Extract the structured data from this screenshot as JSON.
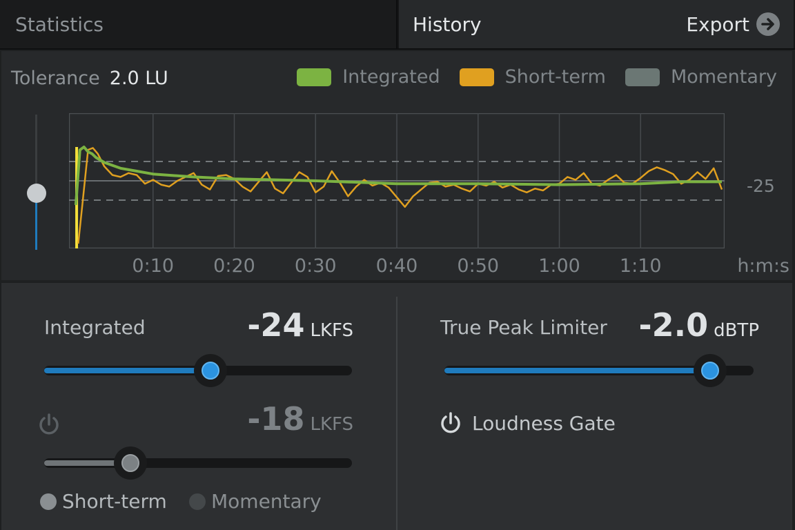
{
  "tabs": {
    "statistics": "Statistics",
    "history": "History",
    "export_label": "Export"
  },
  "history": {
    "tolerance_label": "Tolerance",
    "tolerance_value": "2.0 LU",
    "legend": [
      {
        "label": "Integrated",
        "color": "#7cb342"
      },
      {
        "label": "Short-term",
        "color": "#e0a020"
      },
      {
        "label": "Momentary",
        "color": "#6b7774"
      }
    ],
    "reference_label": "-25",
    "time_unit": "h:m:s"
  },
  "chart_data": {
    "type": "line",
    "xlabel": "h:m:s",
    "x_ticks": [
      "0:10",
      "0:20",
      "0:30",
      "0:40",
      "0:50",
      "1:00",
      "1:10"
    ],
    "xlim": [
      0,
      80
    ],
    "ylim": [
      -32,
      -18
    ],
    "reference_line": -25,
    "tolerance_lu": 2.0,
    "grid": true,
    "series": [
      {
        "name": "Integrated",
        "color": "#7cb342",
        "x": [
          0.5,
          1,
          1.5,
          2,
          2.5,
          3,
          4,
          5,
          6,
          8,
          10,
          15,
          20,
          30,
          40,
          50,
          60,
          70,
          75,
          80
        ],
        "y": [
          -27.5,
          -21.8,
          -21.5,
          -22,
          -22.2,
          -22.6,
          -23.1,
          -23.4,
          -23.7,
          -24.0,
          -24.3,
          -24.6,
          -24.8,
          -25.0,
          -25.3,
          -25.3,
          -25.4,
          -25.3,
          -25.1,
          -25.1
        ]
      },
      {
        "name": "Short-term",
        "color": "#e0a020",
        "x": [
          0.8,
          1.3,
          2,
          2.6,
          3.2,
          4,
          5,
          6,
          7,
          8,
          9,
          10,
          11,
          12,
          13,
          14,
          15,
          16,
          17,
          18,
          19,
          20,
          21,
          22,
          23,
          24,
          25,
          26,
          27,
          28,
          29,
          30,
          31,
          32,
          33,
          34,
          35,
          36,
          37,
          38,
          39,
          40,
          41,
          42,
          43,
          44,
          45,
          46,
          47,
          48,
          49,
          50,
          51,
          52,
          53,
          54,
          55,
          56,
          57,
          58,
          59,
          60,
          61,
          62,
          63,
          64,
          65,
          66,
          67,
          68,
          69,
          70,
          71,
          72,
          73,
          74,
          75,
          76,
          77,
          78,
          79,
          80
        ],
        "y": [
          -31.5,
          -27.5,
          -21.8,
          -21.6,
          -22.2,
          -23.5,
          -24.4,
          -24.6,
          -24.2,
          -24.4,
          -25.3,
          -24.9,
          -25.4,
          -25.6,
          -25.0,
          -24.6,
          -24.2,
          -25.4,
          -25.9,
          -24.5,
          -24.4,
          -24.8,
          -25.6,
          -26.1,
          -25.1,
          -24.1,
          -25.8,
          -26.3,
          -25.2,
          -24.1,
          -24.6,
          -26.2,
          -25.6,
          -24.0,
          -25.2,
          -26.6,
          -25.6,
          -24.9,
          -25.5,
          -25.2,
          -25.7,
          -26.7,
          -27.7,
          -26.6,
          -25.9,
          -25.2,
          -25.1,
          -25.6,
          -25.4,
          -25.8,
          -26.1,
          -25.3,
          -25.5,
          -25.1,
          -25.7,
          -25.4,
          -25.9,
          -26.2,
          -25.8,
          -26.0,
          -25.4,
          -25.3,
          -24.6,
          -24.9,
          -24.2,
          -25.3,
          -25.5,
          -24.9,
          -24.4,
          -25.2,
          -25.3,
          -24.7,
          -24.0,
          -23.6,
          -23.9,
          -24.3,
          -25.3,
          -24.9,
          -24.1,
          -24.8,
          -23.7,
          -25.9
        ]
      }
    ]
  },
  "controls": {
    "integrated_label": "Integrated",
    "integrated_value": "-24",
    "integrated_unit": "LKFS",
    "integrated_slider_fraction": 0.54,
    "secondary_value": "-18",
    "secondary_unit": "LKFS",
    "secondary_slider_fraction": 0.28,
    "radio_short_term": "Short-term",
    "radio_momentary": "Momentary",
    "true_peak_label": "True Peak Limiter",
    "true_peak_value": "-2.0",
    "true_peak_unit": "dBTP",
    "true_peak_slider_fraction": 0.86,
    "loudness_gate_label": "Loudness Gate"
  }
}
